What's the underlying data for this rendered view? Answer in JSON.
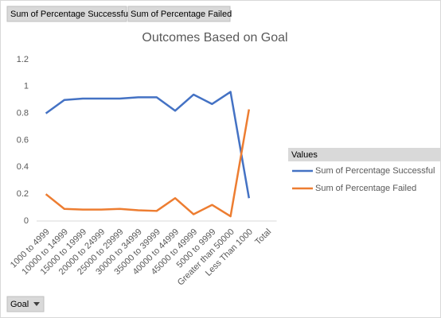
{
  "chart_data": {
    "type": "line",
    "title": "Outcomes Based on Goal",
    "categories": [
      "1000 to 4999",
      "10000 to 14999",
      "15000 to 19999",
      "20000 to 24999",
      "25000 to 29999",
      "30000 to 34999",
      "35000 to 39999",
      "40000 to 44999",
      "45000 to 49999",
      "5000 to 9999",
      "Greater than 50000",
      "Less Than 1000",
      "Total"
    ],
    "series": [
      {
        "name": "Sum of Percentage Successful",
        "color": "#4472c4",
        "values": [
          0.8,
          0.9,
          0.91,
          0.91,
          0.91,
          0.92,
          0.92,
          0.82,
          0.94,
          0.87,
          0.96,
          0.17,
          null
        ]
      },
      {
        "name": "Sum of Percentage Failed",
        "color": "#ed7d31",
        "values": [
          0.2,
          0.09,
          0.085,
          0.085,
          0.09,
          0.08,
          0.075,
          0.17,
          0.05,
          0.12,
          0.035,
          0.83,
          null
        ]
      }
    ],
    "ylim": [
      0,
      1.2
    ],
    "yticks": [
      0,
      0.2,
      0.4,
      0.6,
      0.8,
      1,
      1.2
    ],
    "legend_title": "Values",
    "x_field": "Goal"
  }
}
